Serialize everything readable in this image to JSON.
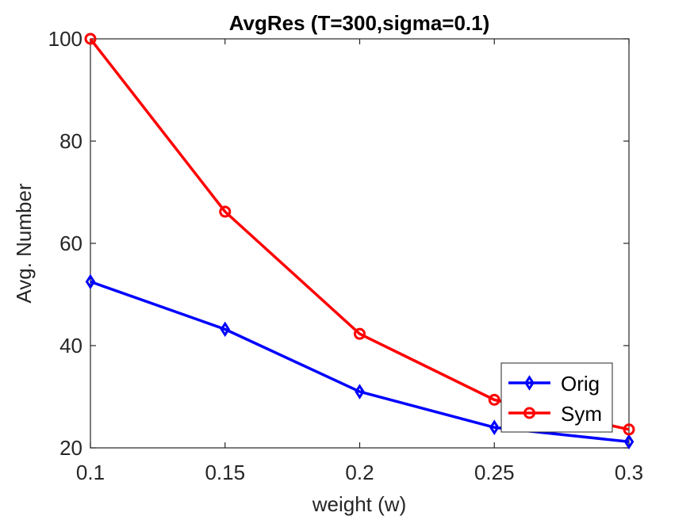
{
  "chart_data": {
    "type": "line",
    "title": "AvgRes (T=300,sigma=0.1)",
    "xlabel": "weight (w)",
    "ylabel": "Avg. Number",
    "x": [
      0.1,
      0.15,
      0.2,
      0.25,
      0.3
    ],
    "xlim": [
      0.1,
      0.3
    ],
    "ylim": [
      20,
      100
    ],
    "xticks": [
      "0.1",
      "0.15",
      "0.2",
      "0.25",
      "0.3"
    ],
    "yticks": [
      "20",
      "40",
      "60",
      "80",
      "100"
    ],
    "grid": false,
    "legend_position": "bottom-right",
    "series": [
      {
        "name": "Orig",
        "color": "#0000ff",
        "marker": "diamond",
        "values": [
          52.5,
          43.2,
          31.0,
          24.0,
          21.2
        ]
      },
      {
        "name": "Sym",
        "color": "#ff0000",
        "marker": "circle",
        "values": [
          100.0,
          66.2,
          42.3,
          29.4,
          23.6
        ]
      }
    ]
  }
}
